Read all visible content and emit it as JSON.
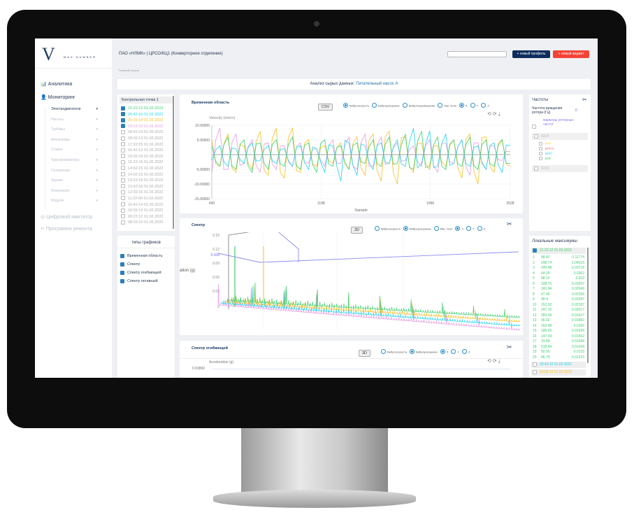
{
  "brand": {
    "logo_letter": "V",
    "logo_text": "MAX NUMBER"
  },
  "header": {
    "title": "ПАО «НЛМК» | ЦРСО/КЦ1 (Конверторное отделение)",
    "breadcrumb": "Главный проект",
    "search_value": "",
    "new_profile": "+ новый профиль",
    "new_widget": "+ новый виджет"
  },
  "colors": {
    "navy": "#0f2d5c",
    "red": "#f44336",
    "green": "#3ccf6e",
    "cyan": "#22d3ee",
    "orange": "#fbbf24",
    "pink": "#e79be0",
    "accent": "#2c8fc9"
  },
  "sidebar": {
    "analytics": "Аналитика",
    "monitoring": "Мониторинг",
    "items": [
      "Электродвигатели",
      "Насосы",
      "Турбины",
      "Механизмы",
      "Станки",
      "Трансформаторы",
      "Генераторы",
      "Здания",
      "Инженерия",
      "Модули"
    ],
    "digital": "Цифровой имитатор",
    "repair": "Программа ремонта"
  },
  "page_title": {
    "label": "Анализ сырых данных:",
    "value": "Питательный насос А"
  },
  "checkpoint": {
    "title": "Контрольная точка 1",
    "items": [
      {
        "t": "21:22:12 01.02.2022",
        "on": true,
        "c": "#3ccf6e"
      },
      {
        "t": "20:42:10 01.02.2022",
        "on": true,
        "c": "#22d3ee"
      },
      {
        "t": "20:02:14 01.02.2022",
        "on": true,
        "c": "#fbbf24"
      },
      {
        "t": "19:22:10 01.02.2022",
        "on": true,
        "c": "#e79be0"
      },
      {
        "t": "18:42:14 01.02.2022"
      },
      {
        "t": "18:02:13 01.02.2022"
      },
      {
        "t": "17:22:15 01.02.2022"
      },
      {
        "t": "16:42:13 01.02.2022"
      },
      {
        "t": "16:02:10 01.02.2022"
      },
      {
        "t": "15:22:16 01.02.2022"
      },
      {
        "t": "14:42:15 01.02.2022"
      },
      {
        "t": "14:02:15 01.02.2022"
      },
      {
        "t": "13:22:15 01.02.2022"
      },
      {
        "t": "12:42:15 01.02.2022"
      },
      {
        "t": "12:02:15 01.02.2022"
      },
      {
        "t": "11:22:09 01.02.2022"
      },
      {
        "t": "10:42:14 01.02.2022"
      },
      {
        "t": "10:02:13 01.02.2022"
      },
      {
        "t": "09:22:12 01.02.2022"
      },
      {
        "t": "08:02:10 01.02.2022"
      }
    ]
  },
  "chart_types": {
    "title": "типы графиков",
    "items": [
      "Временная область",
      "Спектр",
      "Спектр огибающей",
      "Спектр октавный"
    ]
  },
  "time_panel": {
    "title": "Временная область",
    "button": "CSV",
    "options": [
      "Виброскорость",
      "Виброускорение",
      "Виброперемещение",
      "Маг. поле"
    ],
    "selected": 0,
    "axes": [
      "X",
      "Y",
      "Z"
    ],
    "axis_selected": 0
  },
  "spectrum_panel": {
    "title": "Спектр",
    "button": "2D",
    "options": [
      "Виброскорость",
      "Виброускорение",
      "Маг. поле"
    ],
    "selected": 1,
    "axes": [
      "X",
      "Y",
      "Z"
    ],
    "axis_selected": 0,
    "ylabel": "ation (g)",
    "yticks": [
      "0.15",
      "0.12",
      "0.108",
      "0.09",
      "0.06",
      "0.03",
      "0"
    ]
  },
  "envelope_panel": {
    "title": "Спектр огибающей",
    "button": "3D",
    "options": [
      "Виброскорость",
      "Виброускорение"
    ],
    "selected": 1,
    "axes": [
      "X",
      "Y",
      "Z"
    ],
    "axis_selected": 0,
    "ylabel": "Acceleration (g)",
    "ytick": "0.00800"
  },
  "frequencies": {
    "title": "Частоты",
    "rotor_label": "Частота вращения ротора (Гц)",
    "rotor_value": "0",
    "markers": "маркеры роторных частот",
    "bearing1": "6314",
    "bearing2": "6316",
    "bearing_items": [
      {
        "n": "FTF",
        "c": "#fbbf24"
      },
      {
        "n": "BPFO",
        "c": "#f87171"
      },
      {
        "n": "BPFI",
        "c": "#22d3ee"
      },
      {
        "n": "BSF",
        "c": "#3ccf6e"
      }
    ]
  },
  "local_max": {
    "title": "Локальные максимумы",
    "group1": "21:22:12 01.02.2022",
    "group2": "20:42:10 01.02.2022",
    "group3": "20:02:14 01.02.2022",
    "rows": [
      [
        "1",
        "48.42",
        "0.11774"
      ],
      [
        "2",
        "248.74",
        "0.04016"
      ],
      [
        "3",
        "245.48",
        "0.03718"
      ],
      [
        "4",
        "64.29",
        "0.0362"
      ],
      [
        "5",
        "98.14",
        "0.033"
      ],
      [
        "6",
        "338.75",
        "0.03257"
      ],
      [
        "7",
        "241.94",
        "0.02949"
      ],
      [
        "8",
        "47.49",
        "0.02336"
      ],
      [
        "9",
        "49.4",
        "0.02287"
      ],
      [
        "10",
        "152.02",
        "0.02187"
      ],
      [
        "11",
        "247.15",
        "0.02017"
      ],
      [
        "12",
        "283.49",
        "0.01927"
      ],
      [
        "13",
        "96.92",
        "0.01882"
      ],
      [
        "14",
        "162.48",
        "0.0182"
      ],
      [
        "15",
        "186.65",
        "0.01639"
      ],
      [
        "16",
        "147.34",
        "0.01562"
      ],
      [
        "17",
        "33.89",
        "0.01549"
      ],
      [
        "18",
        "518.84",
        "0.01428"
      ],
      [
        "19",
        "50.05",
        "0.0133"
      ],
      [
        "20",
        "46.79",
        "0.01323"
      ]
    ]
  },
  "chart_data": {
    "type": "line",
    "ylabel": "Velocity (mm/c)",
    "xlabel": "Sample",
    "xlim": [
      430,
      2528
    ],
    "ylim": [
      -15,
      10
    ],
    "yticks": [
      "10.00000",
      "5.00000",
      "-5.00000",
      "-10.00000",
      "-15.00000"
    ],
    "xticks": [
      "430",
      "1198",
      "1966",
      "2528"
    ],
    "grid": true,
    "series": [
      {
        "color": "#fbbf24",
        "values": [
          5,
          -4,
          7,
          -6,
          3,
          -5,
          8,
          -7,
          9,
          -8,
          9,
          -6,
          5,
          -4,
          3,
          -3,
          4,
          -5,
          6,
          -7,
          7,
          -9,
          8,
          -10,
          6,
          -6,
          4,
          -5,
          3,
          -4,
          5,
          -8,
          7,
          -10,
          6,
          -6,
          5,
          -4
        ]
      },
      {
        "color": "#e79be0",
        "values": [
          -6,
          9,
          -5,
          7,
          -3,
          5,
          -6,
          4,
          -5,
          3,
          -4,
          4,
          -3,
          2,
          -4,
          5,
          -3,
          6,
          -5,
          7,
          -4,
          6,
          -3,
          4,
          -2,
          3,
          -4,
          5,
          -6,
          4,
          -3,
          5,
          -7,
          4,
          -5,
          3,
          -2,
          1
        ]
      },
      {
        "color": "#22d3ee",
        "values": [
          -2,
          3,
          -4,
          2,
          -3,
          4,
          -2,
          3,
          -3,
          2,
          -4,
          3,
          -5,
          2,
          -6,
          3,
          -9,
          4,
          -7,
          3,
          -5,
          4,
          -3,
          5,
          -4,
          9,
          -3,
          8,
          -4,
          7,
          -3,
          5,
          -4,
          3,
          -5,
          4,
          -6,
          3
        ]
      },
      {
        "color": "#3ccf6e",
        "values": [
          3,
          -4,
          6,
          -5,
          5,
          -6,
          4,
          -5,
          5,
          -4,
          6,
          -5,
          4,
          -6,
          5,
          -4,
          3,
          -5,
          4,
          -3,
          5,
          -4,
          6,
          -3,
          7,
          -5,
          8,
          -4,
          6,
          -5,
          5,
          -4,
          6,
          -5,
          5,
          -4,
          5,
          -3
        ]
      }
    ]
  }
}
